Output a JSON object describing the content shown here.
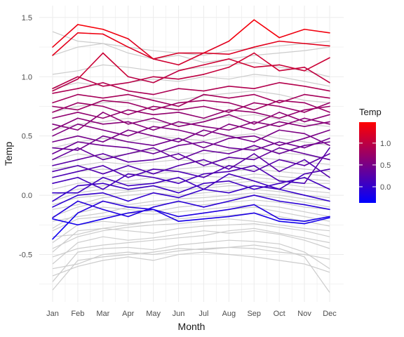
{
  "chart_data": {
    "type": "line",
    "title": "",
    "xlabel": "Month",
    "ylabel": "Temp",
    "categories": [
      "Jan",
      "Feb",
      "Mar",
      "Apr",
      "May",
      "Jun",
      "Jul",
      "Aug",
      "Sep",
      "Oct",
      "Nov",
      "Dec"
    ],
    "ylim": [
      -0.9,
      1.6
    ],
    "yticks": [
      -0.5,
      0.0,
      0.5,
      1.0,
      1.5
    ],
    "ytick_labels": [
      "-0.5",
      "0.0",
      "0.5",
      "1.0",
      "1.5"
    ],
    "grid": true,
    "legend": {
      "title": "Temp",
      "position": "right",
      "labels": [
        "1.0",
        "0.5",
        "0.0"
      ],
      "values": [
        1.0,
        0.5,
        0.0
      ],
      "range": [
        -0.37,
        1.48
      ],
      "colors": [
        "#0000ff",
        "#ff0000"
      ]
    },
    "background_line_color": "#cccccc",
    "background_series": [
      {
        "values": [
          -0.8,
          -0.55,
          -0.52,
          -0.5,
          -0.48,
          -0.45,
          -0.46,
          -0.44,
          -0.42,
          -0.45,
          -0.52,
          -0.82
        ]
      },
      {
        "values": [
          -0.73,
          -0.48,
          -0.45,
          -0.44,
          -0.46,
          -0.42,
          -0.4,
          -0.38,
          -0.39,
          -0.41,
          -0.48,
          -0.62
        ]
      },
      {
        "values": [
          -0.62,
          -0.58,
          -0.5,
          -0.48,
          -0.5,
          -0.47,
          -0.45,
          -0.44,
          -0.45,
          -0.48,
          -0.5,
          -0.54
        ]
      },
      {
        "values": [
          -0.58,
          -0.4,
          -0.35,
          -0.38,
          -0.36,
          -0.33,
          -0.3,
          -0.32,
          -0.3,
          -0.33,
          -0.38,
          -0.45
        ]
      },
      {
        "values": [
          -0.52,
          -0.45,
          -0.42,
          -0.4,
          -0.38,
          -0.36,
          -0.34,
          -0.3,
          -0.28,
          -0.32,
          -0.36,
          -0.4
        ]
      },
      {
        "values": [
          -0.48,
          -0.3,
          -0.28,
          -0.3,
          -0.32,
          -0.28,
          -0.26,
          -0.25,
          -0.24,
          -0.27,
          -0.3,
          -0.35
        ]
      },
      {
        "values": [
          -0.45,
          -0.35,
          -0.3,
          -0.27,
          -0.25,
          -0.24,
          -0.22,
          -0.2,
          -0.22,
          -0.25,
          -0.28,
          -0.3
        ]
      },
      {
        "values": [
          -0.4,
          -0.25,
          -0.22,
          -0.24,
          -0.22,
          -0.2,
          -0.18,
          -0.17,
          -0.15,
          -0.18,
          -0.22,
          -0.26
        ]
      },
      {
        "values": [
          -0.35,
          -0.33,
          -0.28,
          -0.25,
          -0.22,
          -0.18,
          -0.15,
          -0.12,
          -0.1,
          -0.14,
          -0.18,
          -0.22
        ]
      },
      {
        "values": [
          -0.3,
          -0.2,
          -0.18,
          -0.15,
          -0.16,
          -0.14,
          -0.12,
          -0.1,
          -0.08,
          -0.1,
          -0.14,
          -0.18
        ]
      },
      {
        "values": [
          -0.28,
          -0.15,
          -0.1,
          -0.12,
          -0.14,
          -0.1,
          -0.08,
          -0.06,
          -0.04,
          -0.06,
          -0.1,
          -0.12
        ]
      },
      {
        "values": [
          -0.22,
          -0.18,
          -0.15,
          -0.1,
          -0.08,
          -0.06,
          -0.05,
          -0.03,
          0.0,
          -0.02,
          -0.06,
          -0.1
        ]
      },
      {
        "values": [
          -0.18,
          -0.1,
          -0.05,
          -0.08,
          -0.05,
          -0.03,
          -0.02,
          0.0,
          0.02,
          0.0,
          -0.03,
          -0.05
        ]
      },
      {
        "values": [
          -0.12,
          -0.08,
          -0.02,
          0.0,
          0.02,
          0.0,
          0.02,
          0.04,
          0.05,
          0.03,
          0.0,
          -0.02
        ]
      },
      {
        "values": [
          -0.08,
          -0.02,
          0.0,
          0.03,
          0.05,
          0.04,
          0.06,
          0.08,
          0.08,
          0.06,
          0.04,
          0.02
        ]
      },
      {
        "values": [
          -0.05,
          0.02,
          0.05,
          0.04,
          0.08,
          0.06,
          0.08,
          0.1,
          0.12,
          0.1,
          0.07,
          0.06
        ]
      },
      {
        "values": [
          0.0,
          0.05,
          0.08,
          0.1,
          0.1,
          0.12,
          0.1,
          0.12,
          0.15,
          0.13,
          0.1,
          0.1
        ]
      },
      {
        "values": [
          0.05,
          0.1,
          0.12,
          0.12,
          0.15,
          0.14,
          0.16,
          0.15,
          0.18,
          0.16,
          0.14,
          0.12
        ]
      },
      {
        "values": [
          0.1,
          0.15,
          0.15,
          0.18,
          0.18,
          0.2,
          0.18,
          0.2,
          0.22,
          0.2,
          0.18,
          0.16
        ]
      },
      {
        "values": [
          0.15,
          0.2,
          0.22,
          0.2,
          0.22,
          0.22,
          0.24,
          0.25,
          0.25,
          0.24,
          0.22,
          0.2
        ]
      },
      {
        "values": [
          0.22,
          0.25,
          0.28,
          0.26,
          0.28,
          0.3,
          0.28,
          0.3,
          0.32,
          0.3,
          0.28,
          0.26
        ]
      },
      {
        "values": [
          0.3,
          0.35,
          0.32,
          0.35,
          0.38,
          0.36,
          0.35,
          0.38,
          0.4,
          0.36,
          0.34,
          0.3
        ]
      },
      {
        "values": [
          0.4,
          0.45,
          0.48,
          0.45,
          0.5,
          0.48,
          0.46,
          0.5,
          0.52,
          0.48,
          0.45,
          0.42
        ]
      },
      {
        "values": [
          0.55,
          0.6,
          0.62,
          0.65,
          0.62,
          0.6,
          0.64,
          0.66,
          0.68,
          0.64,
          0.6,
          0.58
        ]
      },
      {
        "values": [
          0.7,
          0.75,
          0.78,
          0.8,
          0.82,
          0.8,
          0.84,
          0.86,
          0.88,
          0.85,
          0.8,
          0.78
        ]
      },
      {
        "values": [
          0.9,
          0.95,
          0.92,
          0.95,
          0.98,
          0.96,
          1.0,
          0.98,
          1.02,
          1.0,
          0.96,
          0.92
        ]
      },
      {
        "values": [
          1.02,
          1.05,
          1.1,
          1.08,
          1.05,
          1.06,
          1.08,
          1.1,
          1.12,
          1.08,
          1.05,
          1.0
        ]
      },
      {
        "values": [
          1.38,
          1.3,
          1.28,
          1.25,
          1.22,
          1.2,
          1.18,
          1.22,
          1.24,
          1.26,
          1.28,
          1.3
        ]
      },
      {
        "values": [
          1.18,
          1.25,
          1.28,
          1.2,
          1.15,
          1.18,
          1.12,
          1.15,
          1.18,
          1.2,
          1.22,
          1.25
        ]
      },
      {
        "values": [
          -0.68,
          -0.6,
          -0.55,
          -0.52,
          -0.55,
          -0.5,
          -0.48,
          -0.5,
          -0.52,
          -0.55,
          -0.58,
          -0.65
        ]
      }
    ],
    "series": [
      {
        "values": [
          -0.37,
          -0.15,
          -0.05,
          -0.1,
          -0.12,
          -0.18,
          -0.15,
          -0.12,
          -0.08,
          -0.2,
          -0.22,
          -0.18
        ]
      },
      {
        "values": [
          -0.2,
          -0.25,
          -0.2,
          -0.15,
          -0.12,
          -0.22,
          -0.2,
          -0.18,
          -0.15,
          -0.22,
          -0.24,
          -0.19
        ]
      },
      {
        "values": [
          -0.19,
          -0.05,
          -0.12,
          -0.18,
          -0.1,
          -0.05,
          -0.1,
          -0.05,
          0.0,
          -0.05,
          -0.08,
          -0.12
        ]
      },
      {
        "values": [
          -0.1,
          0.0,
          0.02,
          -0.05,
          0.02,
          -0.02,
          0.05,
          0.02,
          0.08,
          0.05,
          0.0,
          -0.05
        ]
      },
      {
        "values": [
          -0.05,
          0.08,
          0.1,
          0.05,
          0.08,
          0.02,
          0.1,
          0.12,
          0.05,
          0.1,
          0.15,
          0.05
        ]
      },
      {
        "values": [
          0.02,
          0.02,
          0.15,
          0.08,
          0.1,
          0.15,
          0.05,
          0.18,
          0.12,
          0.05,
          0.18,
          0.22
        ]
      },
      {
        "values": [
          0.1,
          0.15,
          0.05,
          0.18,
          0.15,
          0.1,
          0.18,
          0.2,
          0.25,
          0.12,
          0.1,
          0.4
        ]
      },
      {
        "values": [
          0.15,
          0.2,
          0.25,
          0.15,
          0.22,
          0.2,
          0.15,
          0.25,
          0.2,
          0.3,
          0.25,
          0.35
        ]
      },
      {
        "values": [
          0.2,
          0.25,
          0.18,
          0.25,
          0.18,
          0.25,
          0.3,
          0.22,
          0.35,
          0.2,
          0.3,
          0.15
        ]
      },
      {
        "values": [
          0.25,
          0.3,
          0.35,
          0.28,
          0.3,
          0.35,
          0.25,
          0.32,
          0.3,
          0.4,
          0.35,
          0.3
        ]
      },
      {
        "values": [
          0.3,
          0.4,
          0.3,
          0.35,
          0.4,
          0.3,
          0.38,
          0.35,
          0.42,
          0.35,
          0.42,
          0.45
        ]
      },
      {
        "values": [
          0.35,
          0.45,
          0.42,
          0.4,
          0.35,
          0.42,
          0.45,
          0.4,
          0.38,
          0.45,
          0.4,
          0.48
        ]
      },
      {
        "values": [
          0.4,
          0.38,
          0.5,
          0.45,
          0.42,
          0.48,
          0.4,
          0.48,
          0.5,
          0.42,
          0.48,
          0.55
        ]
      },
      {
        "values": [
          0.45,
          0.5,
          0.45,
          0.55,
          0.5,
          0.45,
          0.55,
          0.5,
          0.45,
          0.55,
          0.52,
          0.42
        ]
      },
      {
        "values": [
          0.5,
          0.6,
          0.55,
          0.5,
          0.58,
          0.55,
          0.5,
          0.6,
          0.55,
          0.62,
          0.58,
          0.62
        ]
      },
      {
        "values": [
          0.55,
          0.65,
          0.6,
          0.62,
          0.55,
          0.62,
          0.58,
          0.55,
          0.62,
          0.58,
          0.65,
          0.6
        ]
      },
      {
        "values": [
          0.6,
          0.55,
          0.7,
          0.6,
          0.65,
          0.58,
          0.62,
          0.68,
          0.6,
          0.7,
          0.62,
          0.68
        ]
      },
      {
        "values": [
          0.65,
          0.7,
          0.65,
          0.72,
          0.68,
          0.7,
          0.65,
          0.72,
          0.7,
          0.65,
          0.72,
          0.75
        ]
      },
      {
        "values": [
          0.7,
          0.78,
          0.75,
          0.68,
          0.75,
          0.72,
          0.75,
          0.7,
          0.78,
          0.75,
          0.7,
          0.78
        ]
      },
      {
        "values": [
          0.75,
          0.72,
          0.8,
          0.78,
          0.72,
          0.78,
          0.8,
          0.78,
          0.72,
          0.8,
          0.78,
          0.7
        ]
      },
      {
        "values": [
          0.78,
          0.85,
          0.82,
          0.85,
          0.8,
          0.75,
          0.85,
          0.82,
          0.85,
          0.78,
          0.85,
          0.82
        ]
      },
      {
        "values": [
          0.86,
          0.9,
          0.95,
          0.88,
          0.85,
          0.9,
          0.88,
          0.92,
          0.9,
          0.95,
          0.92,
          0.88
        ]
      },
      {
        "values": [
          0.88,
          0.98,
          1.2,
          1.0,
          0.95,
          1.05,
          1.1,
          1.15,
          1.08,
          1.1,
          1.05,
          1.16
        ]
      },
      {
        "values": [
          0.9,
          1.0,
          0.92,
          0.95,
          1.0,
          0.98,
          1.02,
          1.08,
          1.2,
          1.05,
          1.08,
          0.95
        ]
      },
      {
        "values": [
          1.18,
          1.37,
          1.36,
          1.25,
          1.15,
          1.2,
          1.2,
          1.19,
          1.25,
          1.3,
          1.28,
          1.26
        ]
      },
      {
        "values": [
          1.25,
          1.44,
          1.4,
          1.32,
          1.15,
          1.1,
          1.2,
          1.3,
          1.48,
          1.33,
          1.4,
          1.37
        ]
      }
    ]
  }
}
